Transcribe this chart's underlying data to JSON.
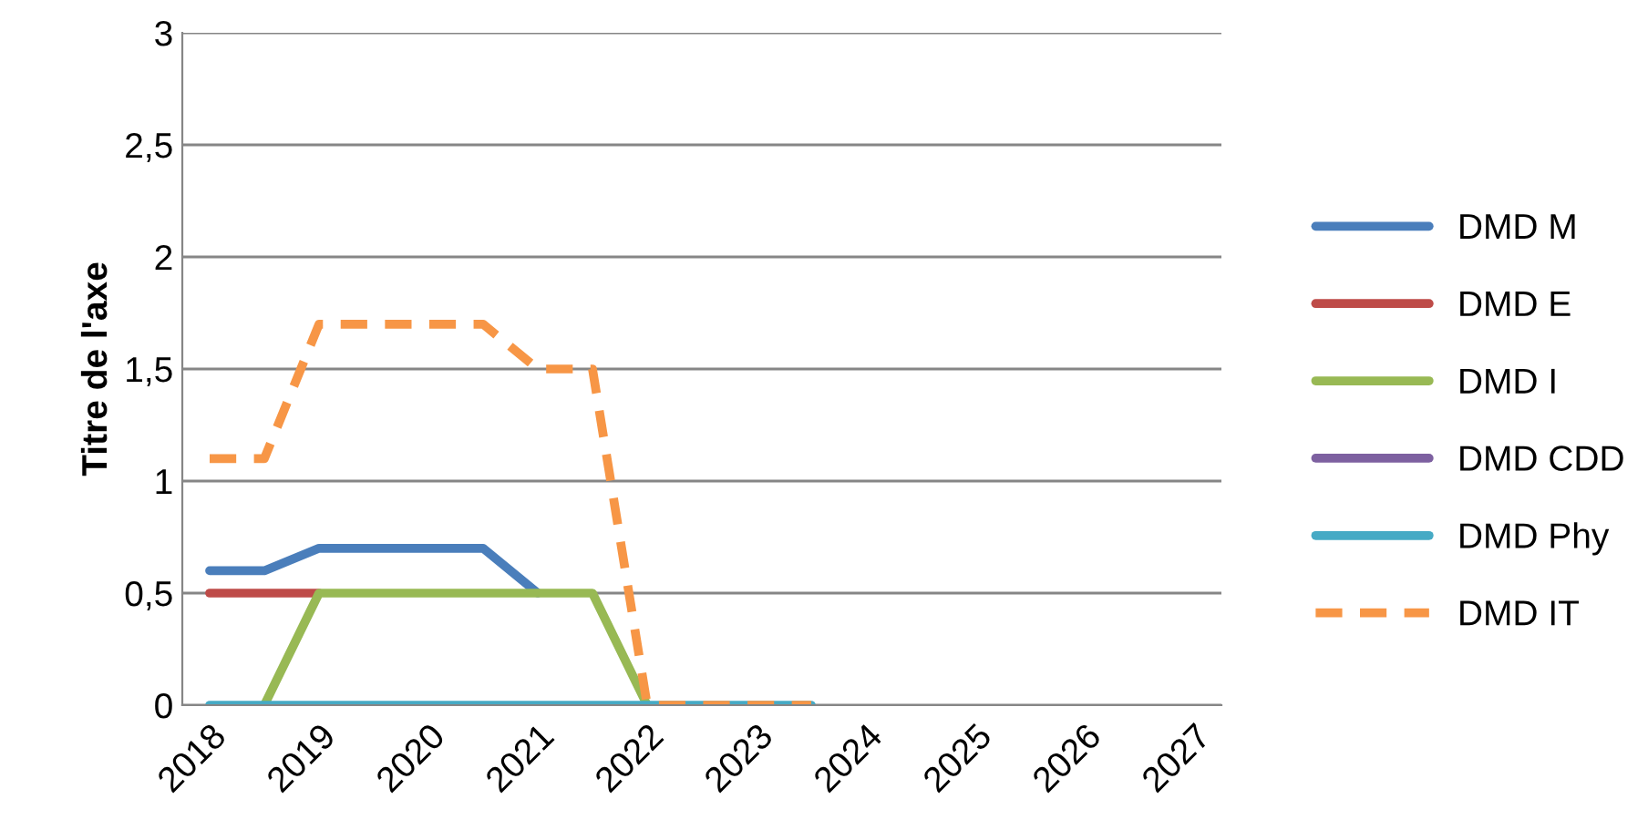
{
  "chart_data": {
    "type": "line",
    "ylabel": "Titre de l'axe",
    "categories": [
      "2018",
      null,
      "2019",
      null,
      "2020",
      null,
      "2021",
      null,
      "2022",
      null,
      "2023",
      null,
      "2024",
      null,
      "2025",
      null,
      "2026",
      null,
      "2027"
    ],
    "ylim": [
      0,
      3
    ],
    "yticks": [
      0,
      {
        "value": 0.5,
        "label": "0,5"
      },
      1,
      {
        "value": 1.5,
        "label": "1,5"
      },
      2,
      {
        "value": 2.5,
        "label": "2,5"
      },
      3
    ],
    "grid": "y",
    "legend": "right",
    "marker": "none",
    "series": [
      {
        "name": "DMD M",
        "color": "#4a7ebb",
        "line_style": "solid",
        "values": [
          0.6,
          0.6,
          0.7,
          0.7,
          0.7,
          0.7,
          0.5,
          null,
          null,
          null,
          null,
          null,
          null,
          null,
          null,
          null,
          null,
          null,
          null
        ]
      },
      {
        "name": "DMD E",
        "color": "#be4b48",
        "line_style": "solid",
        "values": [
          0.5,
          0.5,
          0.5,
          null,
          null,
          null,
          null,
          null,
          null,
          null,
          null,
          null,
          null,
          null,
          null,
          null,
          null,
          null,
          null
        ]
      },
      {
        "name": "DMD I",
        "color": "#98b954",
        "line_style": "solid",
        "values": [
          null,
          0,
          0.5,
          0.5,
          0.5,
          0.5,
          0.5,
          0.5,
          0,
          null,
          null,
          null,
          null,
          null,
          null,
          null,
          null,
          null,
          null
        ]
      },
      {
        "name": "DMD CDD",
        "color": "#7d60a0",
        "line_style": "solid",
        "values": [
          null,
          null,
          null,
          null,
          null,
          null,
          null,
          null,
          null,
          null,
          null,
          null,
          null,
          null,
          null,
          null,
          null,
          null,
          null
        ]
      },
      {
        "name": "DMD Phy",
        "color": "#46aac5",
        "line_style": "solid",
        "values": [
          0,
          0,
          0,
          0,
          0,
          0,
          0,
          0,
          0,
          0,
          0,
          0,
          null,
          null,
          null,
          null,
          null,
          null,
          null
        ]
      },
      {
        "name": "DMD IT",
        "color": "#f79646",
        "line_style": "dashed",
        "values": [
          1.1,
          1.1,
          1.7,
          1.7,
          1.7,
          1.7,
          1.5,
          1.5,
          0,
          0,
          0,
          0,
          null,
          null,
          null,
          null,
          null,
          null,
          null
        ]
      }
    ]
  }
}
